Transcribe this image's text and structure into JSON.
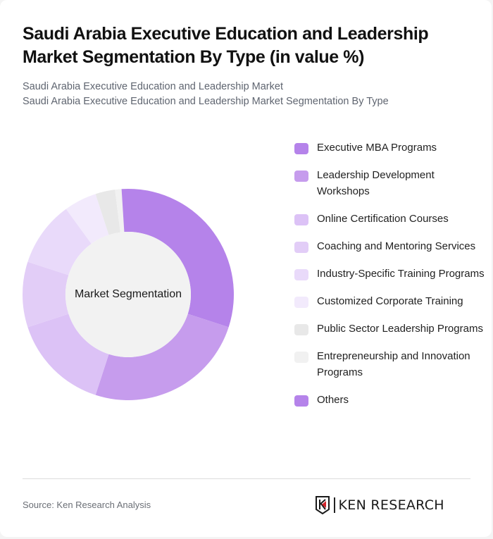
{
  "header": {
    "title": "Saudi Arabia Executive Education and Leadership Market Segmentation By Type (in value %)",
    "subtitle_lines": [
      "Saudi Arabia Executive Education and Leadership Market",
      "Saudi Arabia Executive Education and Leadership Market Segmentation By Type"
    ]
  },
  "chart_data": {
    "type": "pie",
    "variant": "donut",
    "title": "Saudi Arabia Executive Education and Leadership Market Segmentation By Type (in value %)",
    "center_label": "Market Segmentation",
    "legend_position": "right",
    "categories": [
      "Executive MBA Programs",
      "Leadership Development Workshops",
      "Online Certification Courses",
      "Coaching and Mentoring Services",
      "Industry-Specific Training Programs",
      "Customized Corporate Training",
      "Public Sector Leadership Programs",
      "Entrepreneurship and Innovation Programs",
      "Others"
    ],
    "values": [
      30,
      25,
      15,
      10,
      10,
      5,
      3,
      1,
      1
    ],
    "colors": [
      "#b583ea",
      "#c69ced",
      "#dcc2f6",
      "#e2cdf7",
      "#e9dafa",
      "#f2eafc",
      "#e8e8e8",
      "#f1f1f1",
      "#b583ea"
    ],
    "units": "%"
  },
  "legend": {
    "items": [
      {
        "label": "Executive MBA Programs",
        "color": "#b583ea"
      },
      {
        "label": "Leadership Development Workshops",
        "color": "#c69ced"
      },
      {
        "label": "Online Certification Courses",
        "color": "#dcc2f6"
      },
      {
        "label": "Coaching and Mentoring Services",
        "color": "#e2cdf7"
      },
      {
        "label": "Industry-Specific Training Programs",
        "color": "#e9dafa"
      },
      {
        "label": "Customized Corporate Training",
        "color": "#f2eafc"
      },
      {
        "label": "Public Sector Leadership Programs",
        "color": "#e8e8e8"
      },
      {
        "label": "Entrepreneurship and Innovation Programs",
        "color": "#f1f1f1"
      },
      {
        "label": "Others",
        "color": "#b583ea"
      }
    ]
  },
  "footer": {
    "source": "Source: Ken Research Analysis",
    "logo_text": "KEN RESEARCH"
  },
  "colors": {
    "inner_circle": "#f2f2f2",
    "logo_accent": "#d2232a"
  }
}
